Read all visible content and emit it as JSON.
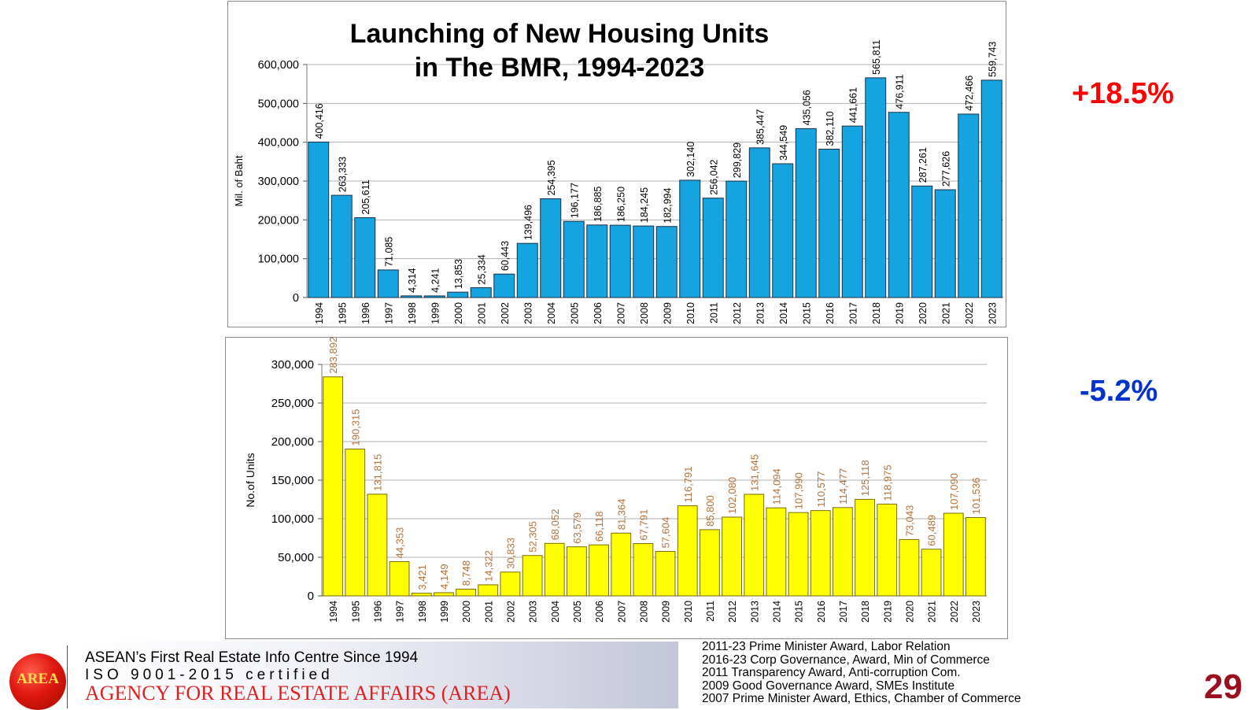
{
  "chart_data": [
    {
      "type": "bar",
      "title": "Launching of New Housing Units in The BMR, 1994-2023",
      "title_lines": [
        "Launching of New Housing Units",
        "in The BMR, 1994-2023"
      ],
      "ylabel": "Mil. of Baht",
      "ylim": [
        0,
        600000
      ],
      "yticks": [
        "0",
        "100,000",
        "200,000",
        "300,000",
        "400,000",
        "500,000",
        "600,000"
      ],
      "grid": true,
      "bar_color": "#15a4df",
      "label_color": "#000000",
      "categories": [
        "1994",
        "1995",
        "1996",
        "1997",
        "1998",
        "1999",
        "2000",
        "2001",
        "2002",
        "2003",
        "2004",
        "2005",
        "2006",
        "2007",
        "2008",
        "2009",
        "2010",
        "2011",
        "2012",
        "2013",
        "2014",
        "2015",
        "2016",
        "2017",
        "2018",
        "2019",
        "2020",
        "2021",
        "2022",
        "2023"
      ],
      "values": [
        400416,
        263333,
        205611,
        71085,
        4314,
        4241,
        13853,
        25334,
        60443,
        139496,
        254395,
        196177,
        186885,
        186250,
        184245,
        182994,
        302140,
        256042,
        299829,
        385447,
        344549,
        435056,
        382110,
        441661,
        565811,
        476911,
        287261,
        277626,
        472466,
        559743
      ],
      "labels": [
        "400,416",
        "263,333",
        "205,611",
        "71,085",
        "4,314",
        "4,241",
        "13,853",
        "25,334",
        "60,443",
        "139,496",
        "254,395",
        "196,177",
        "186,885",
        "186,250",
        "184,245",
        "182,994",
        "302,140",
        "256,042",
        "299,829",
        "385,447",
        "344,549",
        "435,056",
        "382,110",
        "441,661",
        "565,811",
        "476,911",
        "287,261",
        "277,626",
        "472,466",
        "559,743"
      ]
    },
    {
      "type": "bar",
      "title": "",
      "ylabel": "No.of Units",
      "ylim": [
        0,
        300000
      ],
      "yticks": [
        "0",
        "50,000",
        "100,000",
        "150,000",
        "200,000",
        "250,000",
        "300,000"
      ],
      "grid": true,
      "bar_color": "#ffff00",
      "label_color": "#b5723c",
      "categories": [
        "1994",
        "1995",
        "1996",
        "1997",
        "1998",
        "1999",
        "2000",
        "2001",
        "2002",
        "2003",
        "2004",
        "2005",
        "2006",
        "2007",
        "2008",
        "2009",
        "2010",
        "2011",
        "2012",
        "2013",
        "2014",
        "2015",
        "2016",
        "2017",
        "2018",
        "2019",
        "2020",
        "2021",
        "2022",
        "2023"
      ],
      "values": [
        283892,
        190315,
        131815,
        44353,
        3421,
        4149,
        8748,
        14322,
        30833,
        52305,
        68052,
        63579,
        66118,
        81364,
        67791,
        57604,
        116791,
        85800,
        102080,
        131645,
        114094,
        107990,
        110577,
        114477,
        125118,
        118975,
        73043,
        60489,
        107090,
        101536
      ],
      "labels": [
        "283,892",
        "190,315",
        "131,815",
        "44,353",
        "3,421",
        "4,149",
        "8,748",
        "14,322",
        "30,833",
        "52,305",
        "68,052",
        "63,579",
        "66,118",
        "81,364",
        "67,791",
        "57,604",
        "116,791",
        "85,800",
        "102,080",
        "131,645",
        "114,094",
        "107,990",
        "110,577",
        "114,477",
        "125,118",
        "118,975",
        "73,043",
        "60,489",
        "107,090",
        "101,536"
      ]
    }
  ],
  "annotations": {
    "top_change": "+18.5%",
    "top_change_color": "#ff0000",
    "bottom_change": "-5.2%",
    "bottom_change_color": "#0033cc"
  },
  "footer": {
    "logo_text": "AREA",
    "line1": "ASEAN’s First Real Estate Info Centre Since 1994",
    "line2": "ISO 9001-2015 certified",
    "line3": "AGENCY FOR REAL ESTATE AFFAIRS (AREA)",
    "awards": [
      "2011-23 Prime Minister Award, Labor Relation",
      "2016-23 Corp Governance, Award, Min of Commerce",
      "2011 Transparency Award, Anti-corruption Com.",
      "2009 Good Governance Award, SMEs Institute",
      "2007 Prime Minister Award, Ethics, Chamber of Commerce"
    ],
    "page_number": "29"
  }
}
